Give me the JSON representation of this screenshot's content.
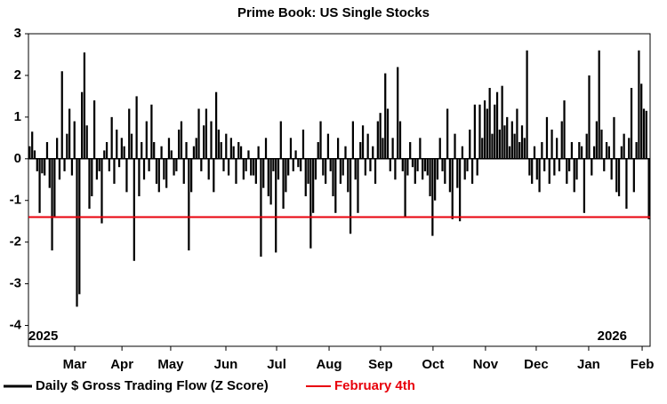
{
  "chart_data": {
    "type": "bar",
    "title": "Prime Book: US Single Stocks",
    "values": [
      0.3,
      0.65,
      0.2,
      -0.3,
      -1.3,
      -0.35,
      -0.4,
      0.4,
      -0.7,
      -2.2,
      -1.4,
      0.5,
      -0.5,
      2.1,
      -0.3,
      0.6,
      1.2,
      -0.4,
      0.9,
      -3.55,
      -3.25,
      1.6,
      2.55,
      0.8,
      -1.2,
      -0.9,
      1.4,
      -0.5,
      -0.3,
      -1.55,
      0.2,
      0.4,
      -0.3,
      1.0,
      -0.6,
      0.7,
      -0.2,
      0.5,
      0.3,
      -0.8,
      1.2,
      0.6,
      -2.45,
      1.5,
      -0.9,
      0.4,
      -0.5,
      0.9,
      -0.3,
      1.3,
      0.4,
      -0.6,
      -0.8,
      0.3,
      -0.5,
      -0.7,
      0.5,
      0.2,
      -0.4,
      -0.3,
      0.7,
      0.9,
      -0.6,
      0.4,
      -2.2,
      -0.8,
      0.3,
      0.5,
      1.2,
      -0.3,
      0.8,
      1.2,
      -0.5,
      0.9,
      -0.8,
      1.6,
      0.7,
      0.4,
      -0.3,
      0.6,
      -0.4,
      0.5,
      0.3,
      -0.6,
      0.4,
      0.3,
      -0.5,
      -0.3,
      0.2,
      -0.4,
      -0.4,
      -0.6,
      0.3,
      -2.35,
      -0.7,
      0.5,
      -0.9,
      -1.1,
      -0.3,
      -2.25,
      -0.5,
      0.9,
      -1.2,
      -0.8,
      -0.4,
      0.5,
      -0.3,
      0.2,
      -0.2,
      -0.3,
      0.7,
      -0.9,
      -0.6,
      -2.15,
      -1.3,
      -0.5,
      0.4,
      0.9,
      -0.4,
      -0.6,
      0.6,
      -0.3,
      -0.9,
      -1.3,
      0.5,
      -0.6,
      -0.4,
      0.3,
      -0.8,
      -1.8,
      0.9,
      -0.5,
      -1.3,
      0.4,
      0.8,
      -0.4,
      0.6,
      -0.3,
      0.3,
      -0.6,
      0.9,
      1.1,
      0.5,
      2.05,
      1.2,
      -0.3,
      0.5,
      -0.5,
      2.2,
      0.9,
      -0.3,
      -1.4,
      -0.4,
      0.4,
      -0.2,
      -0.6,
      -0.3,
      0.5,
      -0.5,
      -0.3,
      -0.4,
      -0.9,
      -1.85,
      -1.0,
      -0.5,
      0.5,
      -0.3,
      -0.6,
      1.2,
      -0.8,
      -1.45,
      0.6,
      -0.7,
      -1.5,
      0.3,
      -0.5,
      -0.3,
      0.7,
      -0.6,
      1.3,
      -0.4,
      1.3,
      0.5,
      1.4,
      1.2,
      1.7,
      0.6,
      1.3,
      1.6,
      0.7,
      1.75,
      0.8,
      1.0,
      0.3,
      0.9,
      0.6,
      1.2,
      0.4,
      0.8,
      0.5,
      2.6,
      -0.4,
      -0.6,
      0.3,
      -0.5,
      -0.8,
      0.4,
      -0.3,
      1.0,
      -0.6,
      0.7,
      -0.4,
      0.5,
      -0.3,
      0.9,
      1.4,
      -0.6,
      -0.3,
      0.4,
      -0.8,
      -0.5,
      0.4,
      0.3,
      -1.3,
      0.6,
      2.0,
      -0.4,
      0.3,
      0.9,
      2.6,
      0.7,
      -0.3,
      0.4,
      0.3,
      -0.5,
      1.0,
      -0.8,
      -0.9,
      0.3,
      0.6,
      -1.2,
      0.5,
      1.7,
      -0.8,
      0.4,
      2.6,
      1.8,
      1.2,
      1.15,
      -1.45
    ],
    "series_name": "Daily $ Gross Trading Flow (Z Score)",
    "color": "#000000",
    "reference_line": {
      "name": "February 4th",
      "value": -1.4,
      "color": "#e8000b"
    },
    "annotations": [
      "2025",
      "2026"
    ],
    "ylim": [
      -4.5,
      3
    ],
    "yticks": [
      -4,
      -3,
      -2,
      -1,
      0,
      1,
      2,
      3
    ],
    "xlim": [
      0,
      250
    ],
    "xticks": [
      {
        "value": 18.6,
        "label": "Mar"
      },
      {
        "value": 37.6,
        "label": "Apr"
      },
      {
        "value": 57.2,
        "label": "May"
      },
      {
        "value": 79.4,
        "label": "Jun"
      },
      {
        "value": 99.8,
        "label": "Jul"
      },
      {
        "value": 120.9,
        "label": "Aug"
      },
      {
        "value": 141.6,
        "label": "Sep"
      },
      {
        "value": 162.7,
        "label": "Oct"
      },
      {
        "value": 183.8,
        "label": "Nov"
      },
      {
        "value": 204.2,
        "label": "Dec"
      },
      {
        "value": 225.3,
        "label": "Jan"
      },
      {
        "value": 246.8,
        "label": "Feb"
      }
    ],
    "legend": "bottom"
  }
}
